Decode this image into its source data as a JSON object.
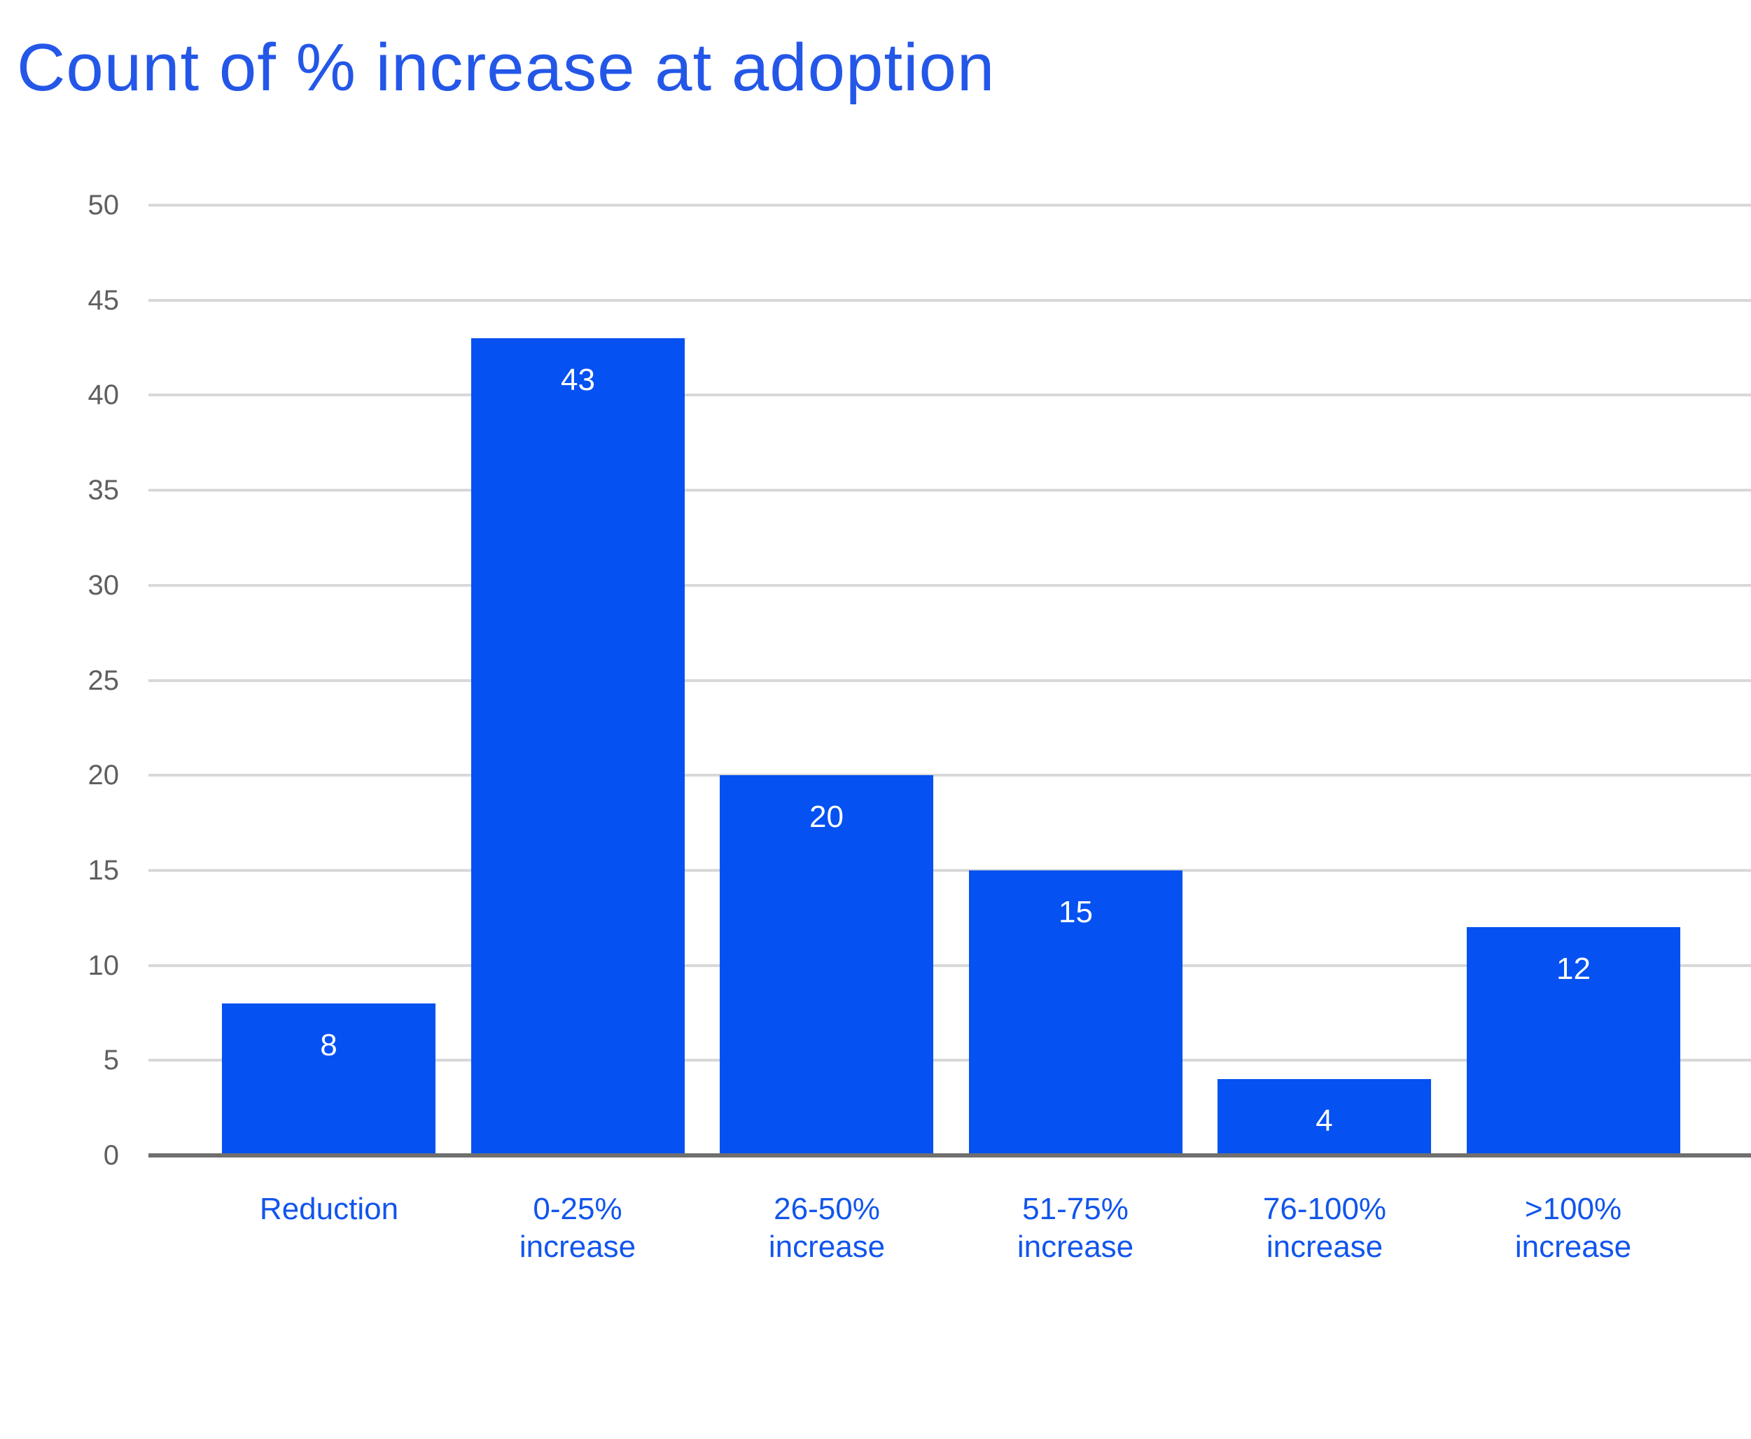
{
  "title": "Count of % increase at adoption",
  "colors": {
    "bar_fill": "#0551f1",
    "title_text": "#2457e8",
    "category_label_text": "#1155ec",
    "tick_label_text": "#5f5f5f",
    "gridline": "#d8d8d8",
    "zero_axis_line": "#6f6f6f",
    "value_label_text": "#ffffff",
    "background": "#ffffff"
  },
  "chart_data": {
    "type": "bar",
    "title": "Count of % increase at adoption",
    "categories": [
      "Reduction",
      "0-25% increase",
      "26-50% increase",
      "51-75% increase",
      "76-100% increase",
      ">100% increase"
    ],
    "category_lines": [
      [
        "Reduction"
      ],
      [
        "0-25%",
        "increase"
      ],
      [
        "26-50%",
        "increase"
      ],
      [
        "51-75%",
        "increase"
      ],
      [
        "76-100%",
        "increase"
      ],
      [
        ">100%",
        "increase"
      ]
    ],
    "values": [
      8,
      43,
      20,
      15,
      4,
      12
    ],
    "value_labels": [
      "8",
      "43",
      "20",
      "15",
      "4",
      "12"
    ],
    "xlabel": "",
    "ylabel": "",
    "ylim": [
      0,
      50
    ],
    "yticks": [
      0,
      5,
      10,
      15,
      20,
      25,
      30,
      35,
      40,
      45,
      50
    ],
    "grid": true,
    "legend": false,
    "orientation": "vertical",
    "value_label_position": "inside-top"
  }
}
